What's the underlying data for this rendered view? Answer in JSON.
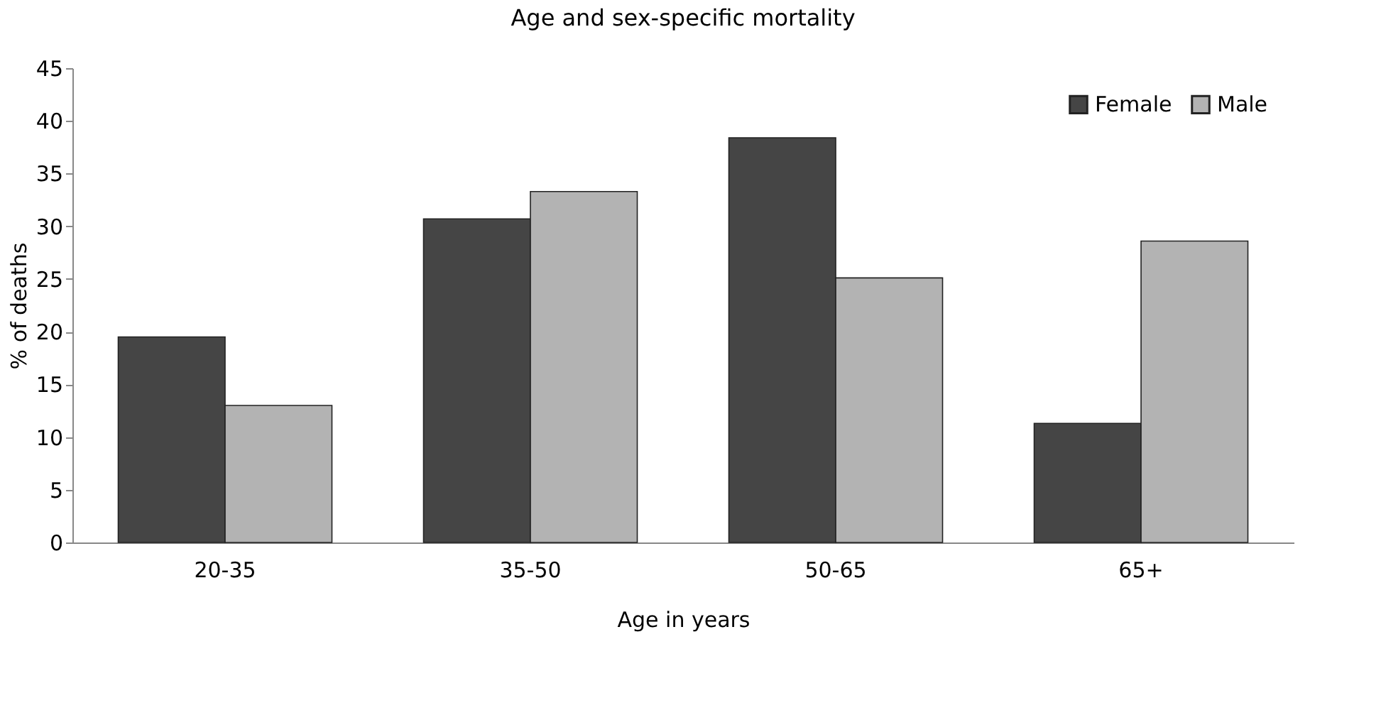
{
  "chart_data": {
    "type": "bar",
    "title": "Age and sex-specific mortality",
    "xlabel": "Age in years",
    "ylabel": "% of deaths",
    "categories": [
      "20-35",
      "35-50",
      "50-65",
      "65+"
    ],
    "series": [
      {
        "name": "Female",
        "color": "#454545",
        "values": [
          19.5,
          30.7,
          38.4,
          11.3
        ]
      },
      {
        "name": "Male",
        "color": "#b3b3b3",
        "values": [
          13,
          33.3,
          25.1,
          28.6
        ]
      }
    ],
    "ylim": [
      0,
      45
    ],
    "yticks": [
      0,
      5,
      10,
      15,
      20,
      25,
      30,
      35,
      40,
      45
    ],
    "grid": false,
    "legend": "top right"
  }
}
